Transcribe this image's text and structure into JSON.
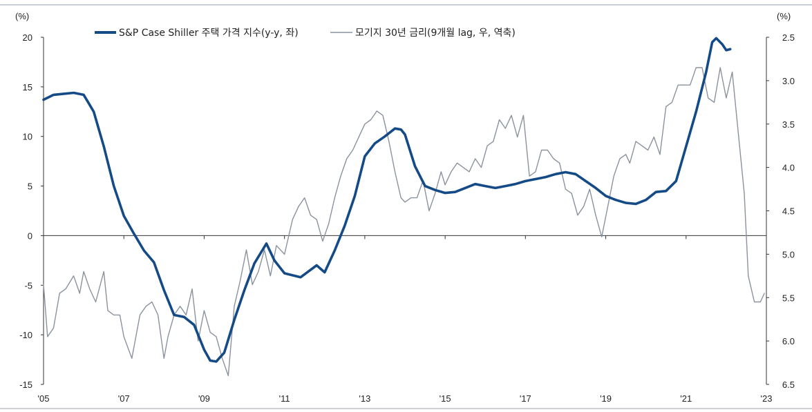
{
  "chart_data": {
    "type": "line",
    "title": "",
    "left_axis": {
      "unit_label": "(%)",
      "ylim": [
        -15,
        20
      ],
      "ticks": [
        20,
        15,
        10,
        5,
        0,
        -5,
        -10,
        -15
      ],
      "tick_labels": [
        "20",
        "15",
        "10",
        "5",
        "0",
        "-5",
        "-10",
        "-15"
      ]
    },
    "right_axis": {
      "unit_label": "(%)",
      "ylim": [
        2.5,
        6.5
      ],
      "inverted": true,
      "ticks": [
        2.5,
        3.0,
        3.5,
        4.0,
        4.5,
        5.0,
        5.5,
        6.0,
        6.5
      ],
      "tick_labels": [
        "2.5",
        "3.0",
        "3.5",
        "4.0",
        "4.5",
        "5.0",
        "5.5",
        "6.0",
        "6.5"
      ]
    },
    "x_axis": {
      "range": [
        2005.0,
        2023.0
      ],
      "ticks": [
        2005,
        2007,
        2009,
        2011,
        2013,
        2015,
        2017,
        2019,
        2021,
        2023
      ],
      "tick_labels": [
        "'05",
        "'07",
        "'09",
        "'11",
        "'13",
        "'15",
        "'17",
        "'19",
        "'21",
        "'23"
      ]
    },
    "legend_position": "top",
    "grid": false,
    "series": [
      {
        "name": "S&P Case Shiller 주택 가격 지수(y-y, 좌)",
        "axis": "left",
        "color": "#144a86",
        "x": [
          2005.0,
          2005.25,
          2005.5,
          2005.75,
          2006.0,
          2006.25,
          2006.5,
          2006.75,
          2007.0,
          2007.25,
          2007.5,
          2007.75,
          2008.0,
          2008.25,
          2008.5,
          2008.75,
          2009.0,
          2009.15,
          2009.3,
          2009.5,
          2009.75,
          2010.0,
          2010.25,
          2010.4,
          2010.55,
          2010.75,
          2011.0,
          2011.2,
          2011.4,
          2011.6,
          2011.8,
          2012.0,
          2012.25,
          2012.5,
          2012.75,
          2013.0,
          2013.25,
          2013.5,
          2013.75,
          2013.9,
          2014.0,
          2014.25,
          2014.5,
          2014.75,
          2015.0,
          2015.25,
          2015.5,
          2015.75,
          2016.0,
          2016.25,
          2016.5,
          2016.75,
          2017.0,
          2017.25,
          2017.5,
          2017.75,
          2018.0,
          2018.25,
          2018.5,
          2018.75,
          2019.0,
          2019.25,
          2019.5,
          2019.75,
          2020.0,
          2020.25,
          2020.5,
          2020.75,
          2021.0,
          2021.25,
          2021.5,
          2021.65,
          2021.75,
          2021.9,
          2022.0,
          2022.1
        ],
        "values": [
          13.7,
          14.2,
          14.3,
          14.4,
          14.2,
          12.5,
          9.0,
          5.0,
          2.0,
          0.2,
          -1.5,
          -2.7,
          -5.5,
          -8.0,
          -8.2,
          -9.0,
          -11.5,
          -12.6,
          -12.7,
          -11.8,
          -8.5,
          -5.5,
          -2.8,
          -1.8,
          -0.8,
          -2.5,
          -3.8,
          -4.0,
          -4.2,
          -3.6,
          -3.0,
          -3.7,
          -1.5,
          1.0,
          4.0,
          8.0,
          9.3,
          10.0,
          10.8,
          10.7,
          10.2,
          7.0,
          5.0,
          4.6,
          4.3,
          4.4,
          4.8,
          5.2,
          5.0,
          4.8,
          5.0,
          5.2,
          5.5,
          5.7,
          5.9,
          6.2,
          6.4,
          6.2,
          5.5,
          4.8,
          4.0,
          3.6,
          3.3,
          3.2,
          3.6,
          4.4,
          4.5,
          5.5,
          9.0,
          12.5,
          16.5,
          19.5,
          19.9,
          19.3,
          18.7,
          18.8
        ]
      },
      {
        "name": "모기지 30년 금리(9개월 lag, 우, 역축)",
        "axis": "right",
        "color": "#8a929d",
        "x": [
          2005.0,
          2005.1,
          2005.25,
          2005.4,
          2005.55,
          2005.75,
          2005.9,
          2006.0,
          2006.15,
          2006.3,
          2006.5,
          2006.6,
          2006.75,
          2006.9,
          2007.0,
          2007.2,
          2007.4,
          2007.55,
          2007.7,
          2007.85,
          2008.0,
          2008.1,
          2008.25,
          2008.4,
          2008.55,
          2008.7,
          2008.85,
          2009.0,
          2009.15,
          2009.3,
          2009.45,
          2009.6,
          2009.75,
          2009.9,
          2010.05,
          2010.2,
          2010.35,
          2010.5,
          2010.65,
          2010.8,
          2011.0,
          2011.2,
          2011.35,
          2011.5,
          2011.65,
          2011.8,
          2011.95,
          2012.1,
          2012.25,
          2012.4,
          2012.55,
          2012.7,
          2012.85,
          2013.0,
          2013.15,
          2013.3,
          2013.45,
          2013.6,
          2013.75,
          2013.9,
          2014.0,
          2014.15,
          2014.3,
          2014.45,
          2014.6,
          2014.75,
          2014.9,
          2015.0,
          2015.15,
          2015.3,
          2015.45,
          2015.6,
          2015.75,
          2015.9,
          2016.05,
          2016.2,
          2016.35,
          2016.5,
          2016.65,
          2016.8,
          2016.95,
          2017.1,
          2017.25,
          2017.4,
          2017.55,
          2017.7,
          2017.85,
          2018.0,
          2018.15,
          2018.3,
          2018.45,
          2018.6,
          2018.75,
          2018.9,
          2019.05,
          2019.2,
          2019.35,
          2019.5,
          2019.6,
          2019.75,
          2019.9,
          2020.05,
          2020.2,
          2020.35,
          2020.5,
          2020.65,
          2020.8,
          2020.95,
          2021.1,
          2021.25,
          2021.4,
          2021.55,
          2021.7,
          2021.85,
          2022.0,
          2022.15,
          2022.3,
          2022.45,
          2022.55,
          2022.7,
          2022.85,
          2022.95
        ],
        "values": [
          5.35,
          5.95,
          5.85,
          5.45,
          5.4,
          5.25,
          5.45,
          5.2,
          5.4,
          5.55,
          5.2,
          5.65,
          5.7,
          5.7,
          5.95,
          6.2,
          5.7,
          5.6,
          5.55,
          5.7,
          6.2,
          5.95,
          5.7,
          5.6,
          5.7,
          5.4,
          6.0,
          5.65,
          5.9,
          5.95,
          6.2,
          6.4,
          5.6,
          5.3,
          4.95,
          5.35,
          5.2,
          4.95,
          5.25,
          4.9,
          5.0,
          4.6,
          4.45,
          4.35,
          4.55,
          4.6,
          4.85,
          4.65,
          4.35,
          4.1,
          3.9,
          3.8,
          3.65,
          3.5,
          3.45,
          3.35,
          3.4,
          3.7,
          4.05,
          4.35,
          4.4,
          4.35,
          4.35,
          4.15,
          4.5,
          4.3,
          4.05,
          4.2,
          4.05,
          3.95,
          4.0,
          4.05,
          3.9,
          4.0,
          3.75,
          3.7,
          3.45,
          3.55,
          3.4,
          3.65,
          3.4,
          4.1,
          4.05,
          3.8,
          3.8,
          3.9,
          3.95,
          4.25,
          4.3,
          4.55,
          4.45,
          4.25,
          4.55,
          4.8,
          4.45,
          4.1,
          3.9,
          3.85,
          3.95,
          3.7,
          3.75,
          3.8,
          3.65,
          3.85,
          3.3,
          3.25,
          3.05,
          3.05,
          3.05,
          2.85,
          2.85,
          3.2,
          3.25,
          2.85,
          3.2,
          2.9,
          3.6,
          4.3,
          5.25,
          5.55,
          5.55,
          5.45
        ]
      }
    ]
  }
}
